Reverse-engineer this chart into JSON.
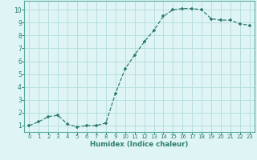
{
  "x": [
    0,
    1,
    2,
    3,
    4,
    5,
    6,
    7,
    8,
    9,
    10,
    11,
    12,
    13,
    14,
    15,
    16,
    17,
    18,
    19,
    20,
    21,
    22,
    23
  ],
  "y": [
    1.0,
    1.3,
    1.7,
    1.8,
    1.1,
    0.9,
    1.0,
    1.0,
    1.2,
    3.5,
    5.4,
    6.5,
    7.5,
    8.4,
    9.5,
    10.0,
    10.1,
    10.1,
    10.0,
    9.3,
    9.2,
    9.2,
    8.9,
    8.8
  ],
  "xlabel": "Humidex (Indice chaleur)",
  "xlim": [
    -0.5,
    23.5
  ],
  "ylim": [
    0.5,
    10.7
  ],
  "yticks": [
    1,
    2,
    3,
    4,
    5,
    6,
    7,
    8,
    9,
    10
  ],
  "xticks": [
    0,
    1,
    2,
    3,
    4,
    5,
    6,
    7,
    8,
    9,
    10,
    11,
    12,
    13,
    14,
    15,
    16,
    17,
    18,
    19,
    20,
    21,
    22,
    23
  ],
  "line_color": "#2e7d6e",
  "marker": "+",
  "bg_color": "#dff5f5",
  "grid_color": "#b8dede",
  "label_color": "#2e7d6e",
  "tick_color": "#2e7d6e",
  "spine_color": "#5aaba0"
}
